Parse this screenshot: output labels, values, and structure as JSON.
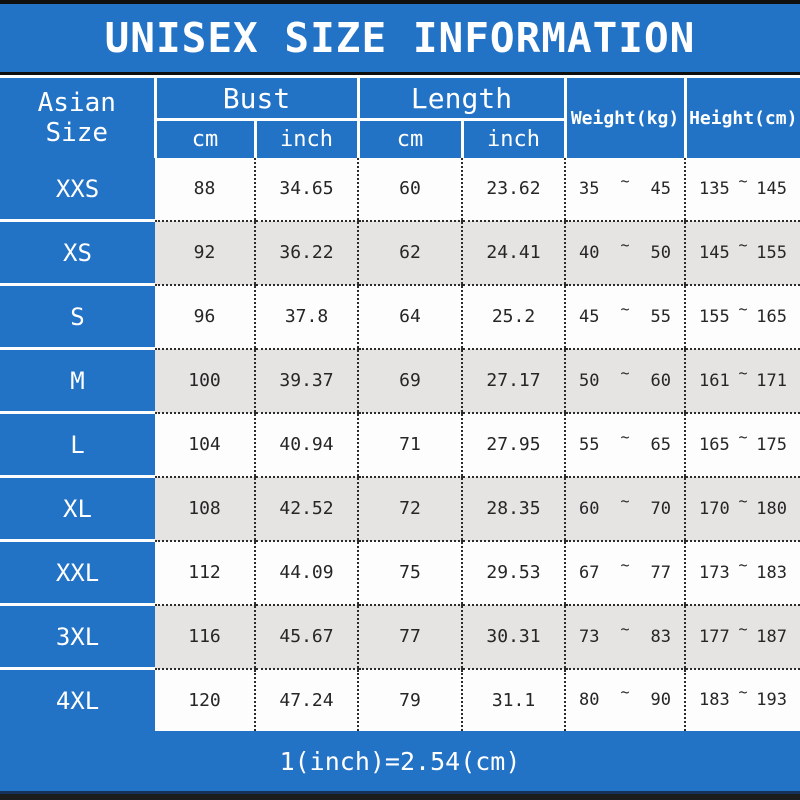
{
  "title": "UNISEX SIZE INFORMATION",
  "footer_note": "1(inch)=2.54(cm)",
  "tilde": "~",
  "colors": {
    "blue": "#2272c6",
    "row_alt_gray": "#e6e4e2",
    "row_white": "#fdfdfd",
    "text": "#262626"
  },
  "header": {
    "asian_size": "Asian Size",
    "bust": "Bust",
    "length": "Length",
    "weight": "Weight(kg)",
    "height": "Height(cm)",
    "unit_cm": "cm",
    "unit_inch": "inch"
  },
  "rows": [
    {
      "size": "XXS",
      "bust_cm": "88",
      "bust_inch": "34.65",
      "length_cm": "60",
      "length_inch": "23.62",
      "weight_min": "35",
      "weight_max": "45",
      "height_min": "135",
      "height_max": "145"
    },
    {
      "size": "XS",
      "bust_cm": "92",
      "bust_inch": "36.22",
      "length_cm": "62",
      "length_inch": "24.41",
      "weight_min": "40",
      "weight_max": "50",
      "height_min": "145",
      "height_max": "155"
    },
    {
      "size": "S",
      "bust_cm": "96",
      "bust_inch": "37.8",
      "length_cm": "64",
      "length_inch": "25.2",
      "weight_min": "45",
      "weight_max": "55",
      "height_min": "155",
      "height_max": "165"
    },
    {
      "size": "M",
      "bust_cm": "100",
      "bust_inch": "39.37",
      "length_cm": "69",
      "length_inch": "27.17",
      "weight_min": "50",
      "weight_max": "60",
      "height_min": "161",
      "height_max": "171"
    },
    {
      "size": "L",
      "bust_cm": "104",
      "bust_inch": "40.94",
      "length_cm": "71",
      "length_inch": "27.95",
      "weight_min": "55",
      "weight_max": "65",
      "height_min": "165",
      "height_max": "175"
    },
    {
      "size": "XL",
      "bust_cm": "108",
      "bust_inch": "42.52",
      "length_cm": "72",
      "length_inch": "28.35",
      "weight_min": "60",
      "weight_max": "70",
      "height_min": "170",
      "height_max": "180"
    },
    {
      "size": "XXL",
      "bust_cm": "112",
      "bust_inch": "44.09",
      "length_cm": "75",
      "length_inch": "29.53",
      "weight_min": "67",
      "weight_max": "77",
      "height_min": "173",
      "height_max": "183"
    },
    {
      "size": "3XL",
      "bust_cm": "116",
      "bust_inch": "45.67",
      "length_cm": "77",
      "length_inch": "30.31",
      "weight_min": "73",
      "weight_max": "83",
      "height_min": "177",
      "height_max": "187"
    },
    {
      "size": "4XL",
      "bust_cm": "120",
      "bust_inch": "47.24",
      "length_cm": "79",
      "length_inch": "31.1",
      "weight_min": "80",
      "weight_max": "90",
      "height_min": "183",
      "height_max": "193"
    }
  ]
}
